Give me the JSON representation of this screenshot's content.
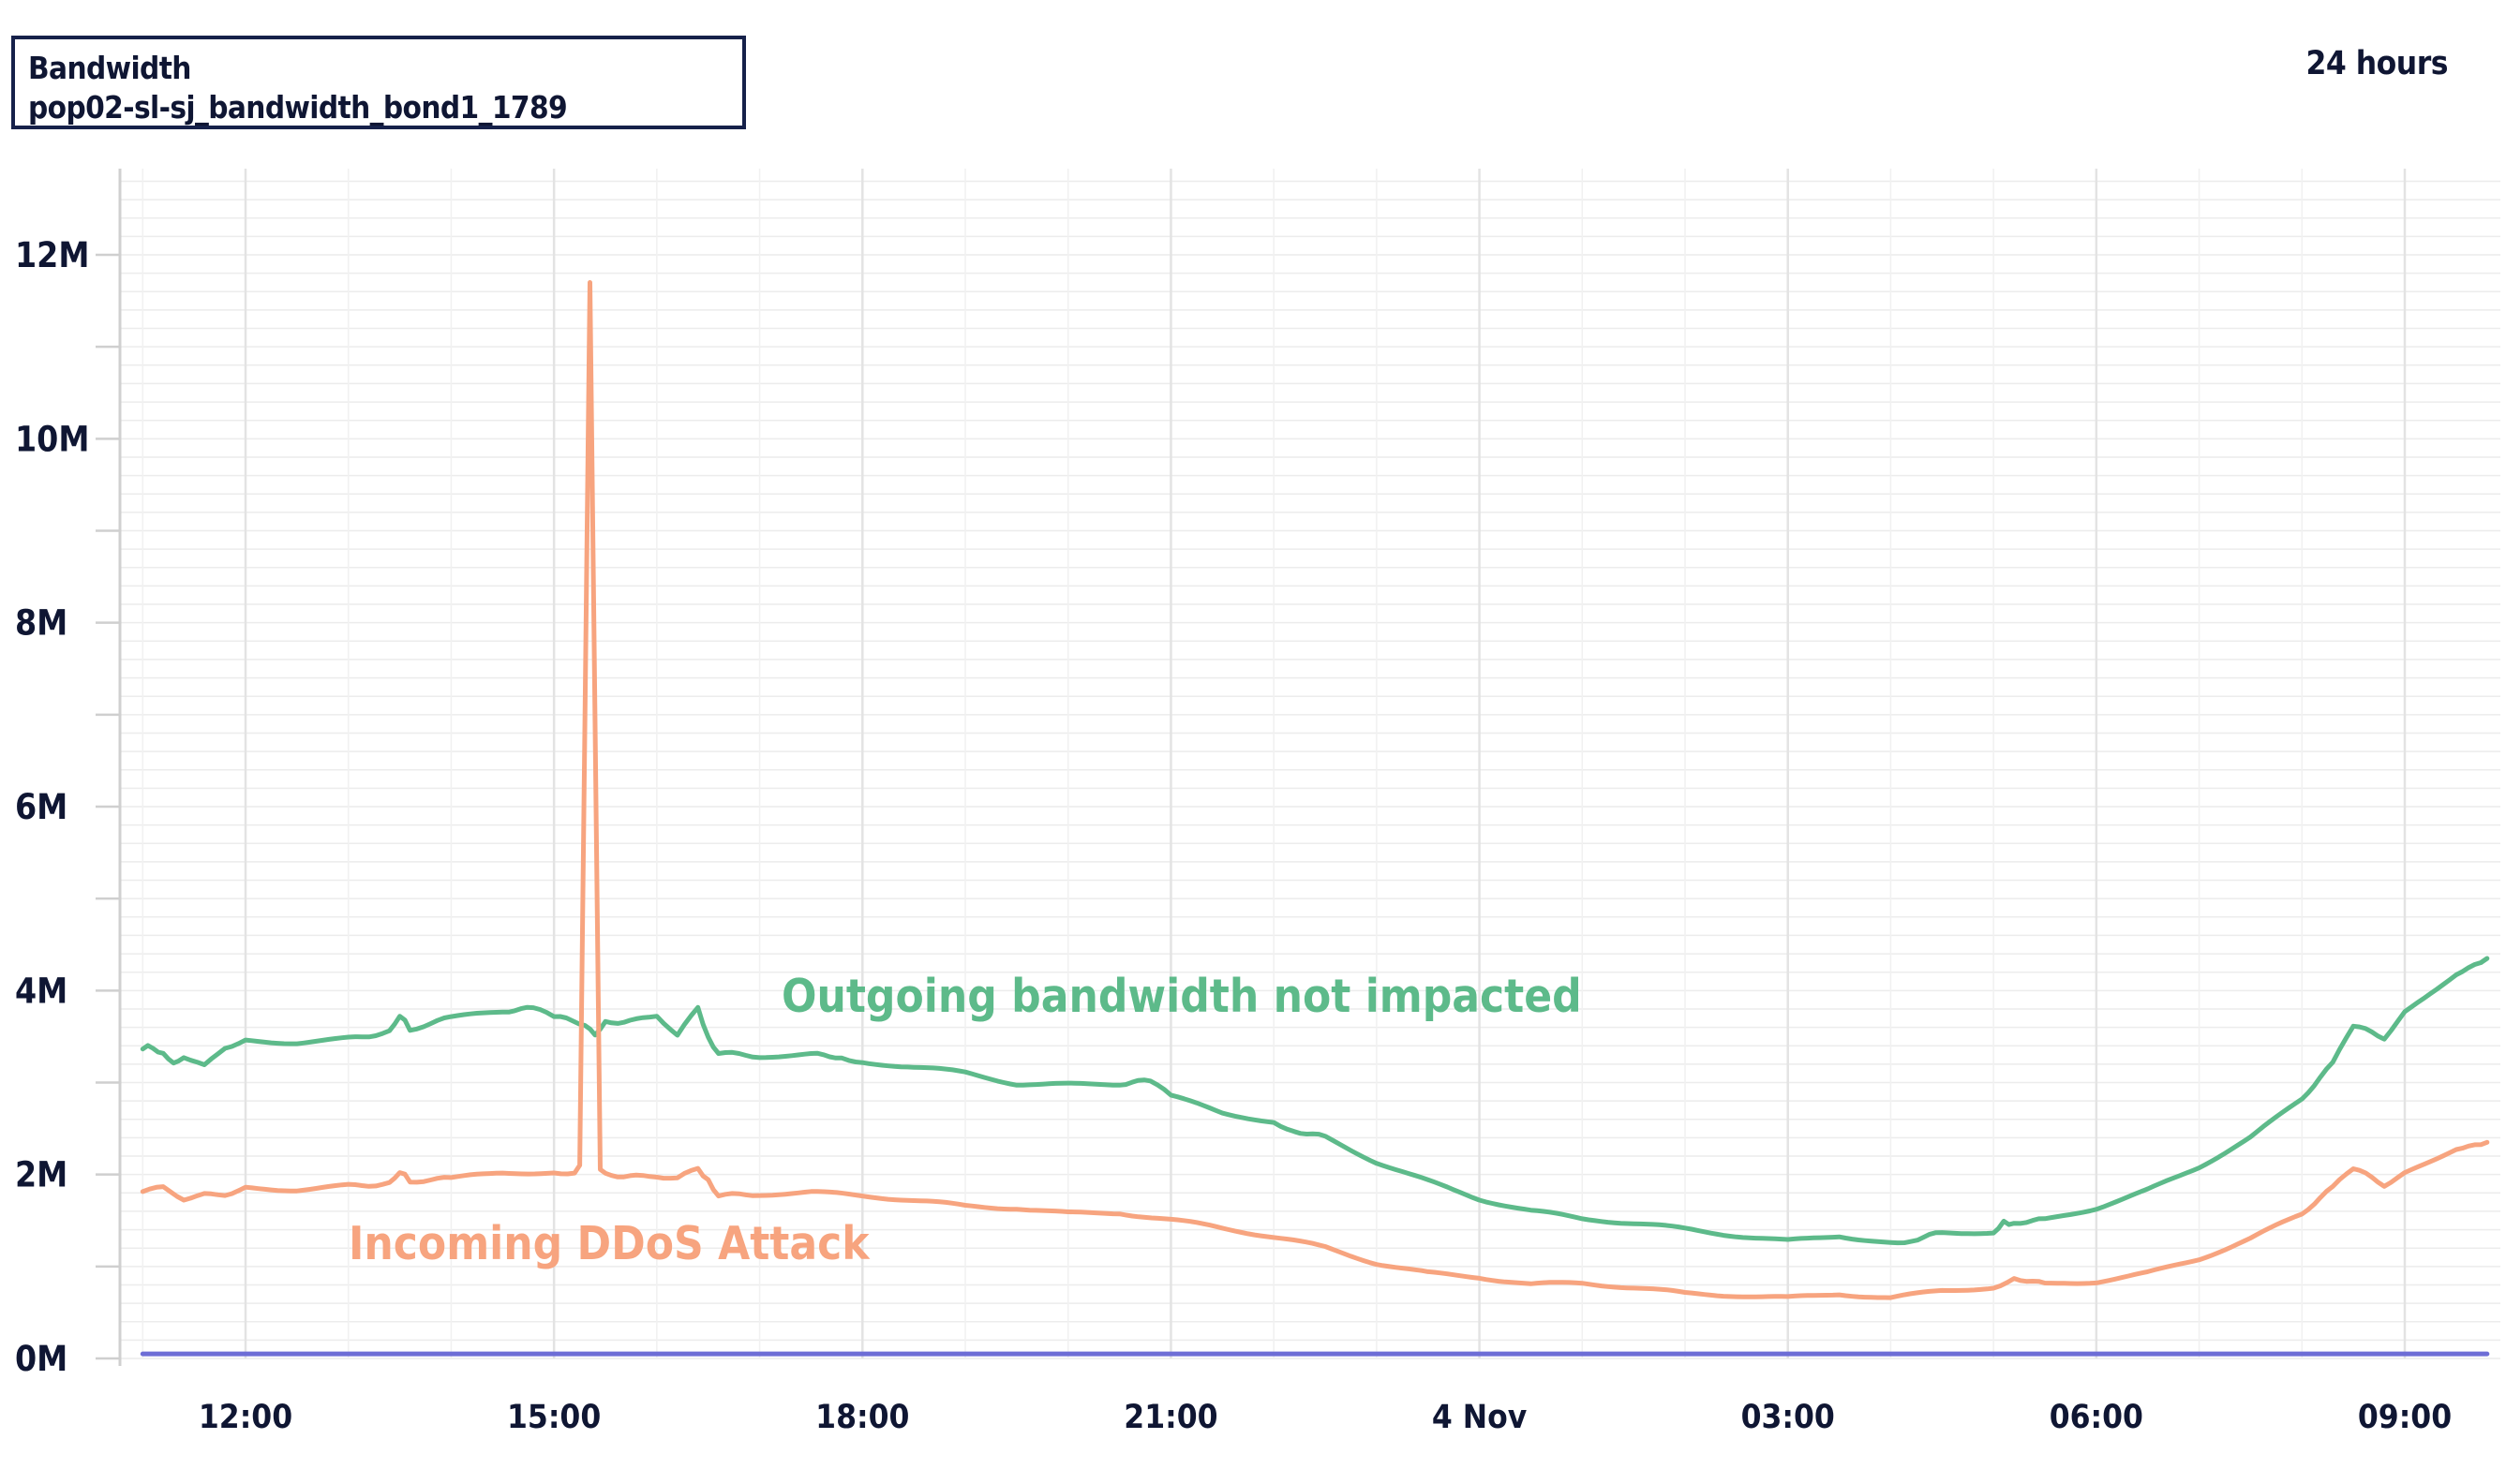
{
  "header": {
    "title": "Bandwidth",
    "subtitle": "pop02-sl-sj_bandwidth_bond1_1789",
    "range_label": "24 hours"
  },
  "colors": {
    "outgoing": "#5dba8a",
    "incoming": "#f7a47f",
    "baseline": "#6e6ed6",
    "axis_text": "#0f1633",
    "grid": "#ececec"
  },
  "chart_data": {
    "type": "line",
    "title": "Bandwidth",
    "subtitle": "pop02-sl-sj_bandwidth_bond1_1789",
    "xlabel": "",
    "ylabel": "",
    "ylim": [
      0,
      12
    ],
    "y_unit": "M",
    "x_range": [
      "11:00",
      "09:50 (next day)"
    ],
    "x_ticks": [
      "12:00",
      "15:00",
      "18:00",
      "21:00",
      "4 Nov",
      "03:00",
      "06:00",
      "09:00"
    ],
    "x_tick_hours": [
      12,
      15,
      18,
      21,
      24,
      27,
      30,
      33
    ],
    "y_ticks": [
      "0M",
      "2M",
      "4M",
      "6M",
      "8M",
      "10M",
      "12M"
    ],
    "y_tick_values": [
      0,
      2,
      4,
      6,
      8,
      10,
      12
    ],
    "grid": true,
    "legend": "none",
    "annotations": [
      {
        "text": "Outgoing bandwidth not impacted",
        "series": "Outgoing"
      },
      {
        "text": "Incoming DDoS Attack",
        "series": "Incoming"
      }
    ],
    "series": [
      {
        "name": "Outgoing",
        "x": [
          11.0,
          11.1,
          11.2,
          11.3,
          11.4,
          11.6,
          11.8,
          12.0,
          12.5,
          13.0,
          13.4,
          13.5,
          13.6,
          14.0,
          14.5,
          14.8,
          15.0,
          15.3,
          15.35,
          15.4,
          15.5,
          15.8,
          16.0,
          16.2,
          16.4,
          16.5,
          16.6,
          17.0,
          17.5,
          17.8,
          18.0,
          18.5,
          19.0,
          19.5,
          20.0,
          20.5,
          20.8,
          21.0,
          21.5,
          22.0,
          22.2,
          22.5,
          23.0,
          23.5,
          24.0,
          24.5,
          25.0,
          25.5,
          26.0,
          26.5,
          27.0,
          27.5,
          28.0,
          28.2,
          28.5,
          29.0,
          29.1,
          29.2,
          29.5,
          30.0,
          30.5,
          31.0,
          31.5,
          32.0,
          32.3,
          32.5,
          32.8,
          33.0,
          33.5,
          33.8
        ],
        "values": [
          3.35,
          3.4,
          3.3,
          3.2,
          3.3,
          3.2,
          3.4,
          3.45,
          3.45,
          3.5,
          3.55,
          3.75,
          3.55,
          3.7,
          3.75,
          3.8,
          3.7,
          3.65,
          3.6,
          3.5,
          3.65,
          3.7,
          3.75,
          3.5,
          3.8,
          3.5,
          3.3,
          3.3,
          3.3,
          3.25,
          3.2,
          3.15,
          3.1,
          3.0,
          3.0,
          3.0,
          3.0,
          2.85,
          2.65,
          2.55,
          2.45,
          2.4,
          2.15,
          1.95,
          1.75,
          1.6,
          1.5,
          1.45,
          1.4,
          1.35,
          1.3,
          1.35,
          1.25,
          1.3,
          1.35,
          1.35,
          1.5,
          1.45,
          1.5,
          1.65,
          1.85,
          2.1,
          2.4,
          2.8,
          3.2,
          3.6,
          3.5,
          3.75,
          4.2,
          4.35
        ]
      },
      {
        "name": "Incoming",
        "x": [
          11.0,
          11.2,
          11.4,
          11.6,
          11.8,
          12.0,
          12.5,
          13.0,
          13.4,
          13.5,
          13.6,
          14.0,
          14.5,
          15.0,
          15.2,
          15.25,
          15.35,
          15.45,
          15.5,
          15.8,
          16.0,
          16.2,
          16.4,
          16.5,
          16.6,
          17.0,
          17.5,
          18.0,
          18.5,
          19.0,
          19.5,
          20.0,
          20.5,
          21.0,
          21.5,
          22.0,
          22.5,
          23.0,
          23.5,
          24.0,
          24.5,
          25.0,
          25.5,
          26.0,
          26.5,
          27.0,
          27.5,
          28.0,
          28.5,
          29.0,
          29.2,
          29.5,
          30.0,
          30.5,
          31.0,
          31.5,
          32.0,
          32.3,
          32.5,
          32.8,
          33.0,
          33.5,
          33.8
        ],
        "values": [
          1.8,
          1.85,
          1.75,
          1.8,
          1.8,
          1.85,
          1.85,
          1.9,
          1.9,
          2.05,
          1.9,
          1.95,
          2.0,
          2.0,
          2.0,
          2.1,
          11.7,
          2.05,
          2.0,
          2.0,
          2.0,
          1.95,
          2.05,
          1.95,
          1.75,
          1.8,
          1.8,
          1.75,
          1.7,
          1.65,
          1.65,
          1.6,
          1.6,
          1.5,
          1.4,
          1.3,
          1.2,
          1.05,
          0.95,
          0.9,
          0.8,
          0.8,
          0.75,
          0.7,
          0.7,
          0.68,
          0.72,
          0.65,
          0.72,
          0.75,
          0.85,
          0.8,
          0.85,
          0.95,
          1.1,
          1.3,
          1.55,
          1.85,
          2.05,
          1.9,
          2.0,
          2.3,
          2.35
        ]
      },
      {
        "name": "Baseline",
        "x": [
          11.0,
          33.8
        ],
        "values": [
          0.05,
          0.05
        ]
      }
    ]
  }
}
